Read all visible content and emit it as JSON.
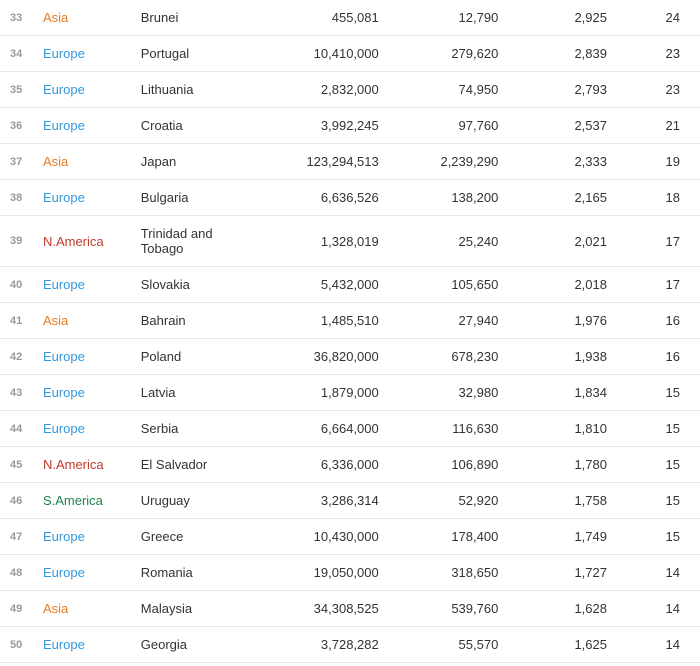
{
  "continent_colors": {
    "Asia": "#e67e22",
    "Europe": "#3498db",
    "N.America": "#c0392b",
    "S.America": "#1e8449"
  },
  "rows": [
    {
      "rank": "33",
      "continent": "Asia",
      "country": "Brunei",
      "c1": "455,081",
      "c2": "12,790",
      "c3": "2,925",
      "c4": "24"
    },
    {
      "rank": "34",
      "continent": "Europe",
      "country": "Portugal",
      "c1": "10,410,000",
      "c2": "279,620",
      "c3": "2,839",
      "c4": "23"
    },
    {
      "rank": "35",
      "continent": "Europe",
      "country": "Lithuania",
      "c1": "2,832,000",
      "c2": "74,950",
      "c3": "2,793",
      "c4": "23"
    },
    {
      "rank": "36",
      "continent": "Europe",
      "country": "Croatia",
      "c1": "3,992,245",
      "c2": "97,760",
      "c3": "2,537",
      "c4": "21"
    },
    {
      "rank": "37",
      "continent": "Asia",
      "country": "Japan",
      "c1": "123,294,513",
      "c2": "2,239,290",
      "c3": "2,333",
      "c4": "19"
    },
    {
      "rank": "38",
      "continent": "Europe",
      "country": "Bulgaria",
      "c1": "6,636,526",
      "c2": "138,200",
      "c3": "2,165",
      "c4": "18"
    },
    {
      "rank": "39",
      "continent": "N.America",
      "country": "Trinidad and Tobago",
      "c1": "1,328,019",
      "c2": "25,240",
      "c3": "2,021",
      "c4": "17"
    },
    {
      "rank": "40",
      "continent": "Europe",
      "country": "Slovakia",
      "c1": "5,432,000",
      "c2": "105,650",
      "c3": "2,018",
      "c4": "17"
    },
    {
      "rank": "41",
      "continent": "Asia",
      "country": "Bahrain",
      "c1": "1,485,510",
      "c2": "27,940",
      "c3": "1,976",
      "c4": "16"
    },
    {
      "rank": "42",
      "continent": "Europe",
      "country": "Poland",
      "c1": "36,820,000",
      "c2": "678,230",
      "c3": "1,938",
      "c4": "16"
    },
    {
      "rank": "43",
      "continent": "Europe",
      "country": "Latvia",
      "c1": "1,879,000",
      "c2": "32,980",
      "c3": "1,834",
      "c4": "15"
    },
    {
      "rank": "44",
      "continent": "Europe",
      "country": "Serbia",
      "c1": "6,664,000",
      "c2": "116,630",
      "c3": "1,810",
      "c4": "15"
    },
    {
      "rank": "45",
      "continent": "N.America",
      "country": "El Salvador",
      "c1": "6,336,000",
      "c2": "106,890",
      "c3": "1,780",
      "c4": "15"
    },
    {
      "rank": "46",
      "continent": "S.America",
      "country": "Uruguay",
      "c1": "3,286,314",
      "c2": "52,920",
      "c3": "1,758",
      "c4": "15"
    },
    {
      "rank": "47",
      "continent": "Europe",
      "country": "Greece",
      "c1": "10,430,000",
      "c2": "178,400",
      "c3": "1,749",
      "c4": "15"
    },
    {
      "rank": "48",
      "continent": "Europe",
      "country": "Romania",
      "c1": "19,050,000",
      "c2": "318,650",
      "c3": "1,727",
      "c4": "14"
    },
    {
      "rank": "49",
      "continent": "Asia",
      "country": "Malaysia",
      "c1": "34,308,525",
      "c2": "539,760",
      "c3": "1,628",
      "c4": "14"
    },
    {
      "rank": "50",
      "continent": "Europe",
      "country": "Georgia",
      "c1": "3,728,282",
      "c2": "55,570",
      "c3": "1,625",
      "c4": "14"
    }
  ]
}
